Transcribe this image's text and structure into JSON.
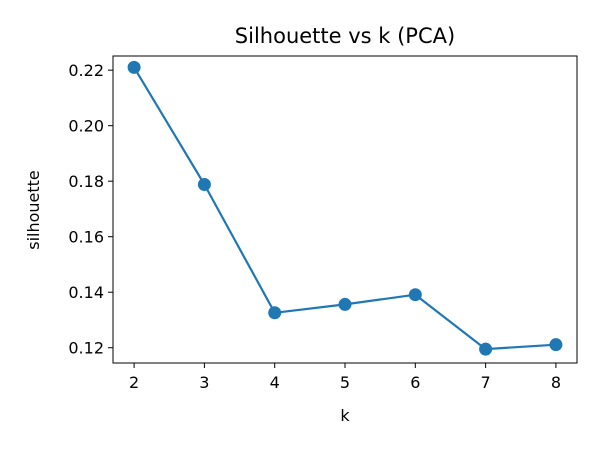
{
  "chart_data": {
    "type": "line",
    "title": "Silhouette vs k (PCA)",
    "xlabel": "k",
    "ylabel": "silhouette",
    "x": [
      2,
      3,
      4,
      5,
      6,
      7,
      8
    ],
    "series": [
      {
        "values": [
          0.221,
          0.1788,
          0.1326,
          0.1356,
          0.1391,
          0.1195,
          0.1211
        ]
      }
    ],
    "xticks": [
      "2",
      "3",
      "4",
      "5",
      "6",
      "7",
      "8"
    ],
    "yticks": [
      "0.12",
      "0.14",
      "0.16",
      "0.18",
      "0.20",
      "0.22"
    ],
    "xlim": [
      1.7,
      8.3
    ],
    "ylim": [
      0.1145,
      0.2251
    ],
    "grid": false,
    "line_color": "#1f77b4",
    "marker": "circle"
  }
}
